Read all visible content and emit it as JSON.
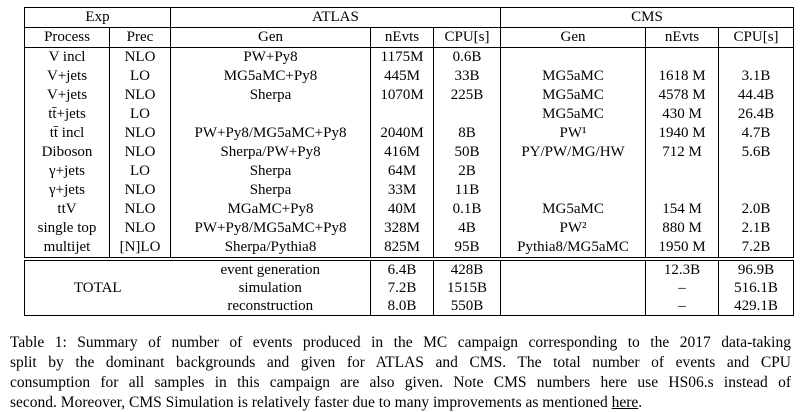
{
  "page": {
    "background": "#ffffff",
    "text_color": "#000000",
    "border_color": "#000000"
  },
  "table": {
    "groups": {
      "exp": "Exp",
      "atlas": "ATLAS",
      "cms": "CMS"
    },
    "columns": [
      "Process",
      "Prec",
      "Gen",
      "nEvts",
      "CPU[s]",
      "Gen",
      "nEvts",
      "CPU[s]"
    ],
    "rows": [
      [
        "V incl",
        "NLO",
        "PW+Py8",
        "1175M",
        "0.6B",
        "",
        "",
        ""
      ],
      [
        "V+jets",
        "LO",
        "MG5aMC+Py8",
        "445M",
        "33B",
        "MG5aMC",
        "1618 M",
        "3.1B"
      ],
      [
        "V+jets",
        "NLO",
        "Sherpa",
        "1070M",
        "225B",
        "MG5aMC",
        "4578 M",
        "44.4B"
      ],
      [
        "tt̄+jets",
        "LO",
        "",
        "",
        "",
        "MG5aMC",
        "430 M",
        "26.4B"
      ],
      [
        "tt̄ incl",
        "NLO",
        "PW+Py8/MG5aMC+Py8",
        "2040M",
        "8B",
        "PW¹",
        "1940 M",
        "4.7B"
      ],
      [
        "Diboson",
        "NLO",
        "Sherpa/PW+Py8",
        "416M",
        "50B",
        "PY/PW/MG/HW",
        "712 M",
        "5.6B"
      ],
      [
        "γ+jets",
        "LO",
        "Sherpa",
        "64M",
        "2B",
        "",
        "",
        ""
      ],
      [
        "γ+jets",
        "NLO",
        "Sherpa",
        "33M",
        "11B",
        "",
        "",
        ""
      ],
      [
        "ttV",
        "NLO",
        "MGaMC+Py8",
        "40M",
        "0.1B",
        "MG5aMC",
        "154 M",
        "2.0B"
      ],
      [
        "single top",
        "NLO",
        "PW+Py8/MG5aMC+Py8",
        "328M",
        "4B",
        "PW²",
        "880 M",
        "2.1B"
      ],
      [
        "multijet",
        "[N]LO",
        "Sherpa/Pythia8",
        "825M",
        "95B",
        "Pythia8/MG5aMC",
        "1950 M",
        "7.2B"
      ]
    ],
    "total": {
      "label": "TOTAL",
      "rows": [
        {
          "stage": "event generation",
          "atlas_nevts": "6.4B",
          "atlas_cpu": "428B",
          "cms_gen": "",
          "cms_nevts": "12.3B",
          "cms_cpu": "96.9B"
        },
        {
          "stage": "simulation",
          "atlas_nevts": "7.2B",
          "atlas_cpu": "1515B",
          "cms_gen": "",
          "cms_nevts": "–",
          "cms_cpu": "516.1B"
        },
        {
          "stage": "reconstruction",
          "atlas_nevts": "8.0B",
          "atlas_cpu": "550B",
          "cms_gen": "",
          "cms_nevts": "–",
          "cms_cpu": "429.1B"
        }
      ]
    }
  },
  "caption": {
    "lines": [
      "Table 1: Summary of number of events produced in the MC campaign corresponding to the 2017 data-taking",
      "split by the dominant backgrounds and given for ATLAS and CMS. The total number of events and CPU",
      "consumption for all samples in this campaign are also given. Note CMS numbers here use HS06.s instead of"
    ],
    "last_line": {
      "before_link": "second. Moreover, CMS Simulation is relatively faster due to many improvements as mentioned ",
      "link": "here",
      "after_link": "."
    }
  }
}
